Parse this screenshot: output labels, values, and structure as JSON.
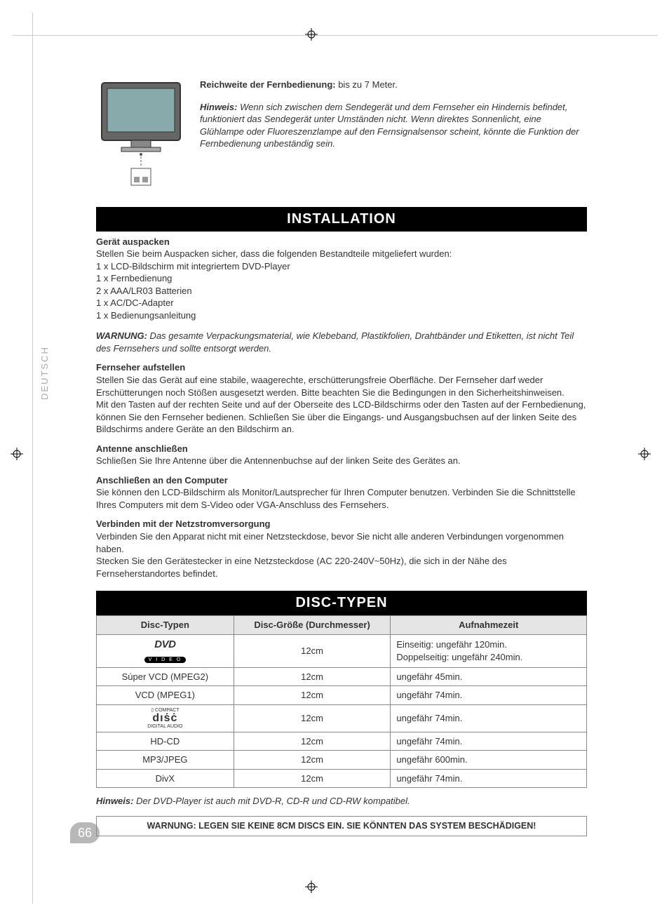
{
  "colors": {
    "text": "#333333",
    "bar_bg": "#000000",
    "bar_fg": "#ffffff",
    "table_border": "#888888",
    "table_header_bg": "#e5e5e5",
    "side_label": "#aaaaaa",
    "page_num_bg": "#b8b8b8",
    "crop": "#999999"
  },
  "typography": {
    "body_fontsize_pt": 10,
    "heading_bar_fontsize_pt": 15,
    "font_family": "Arial"
  },
  "side_label": "DEUTSCH",
  "page_number": "66",
  "intro": {
    "range_label": "Reichweite der Fernbedienung:",
    "range_value": " bis zu 7 Meter.",
    "note_label": "Hinweis:",
    "note_body": " Wenn sich zwischen dem Sendegerät und dem Fernseher ein Hindernis befindet, funktioniert das Sendegerät unter Umständen nicht. Wenn direktes Sonnenlicht, eine Glühlampe oder Fluoreszenzlampe auf den Fernsignalsensor scheint, könnte die Funktion der Fernbedienung unbeständig sein."
  },
  "installation": {
    "heading": "INSTALLATION",
    "unpack_head": "Gerät auspacken",
    "unpack_intro": "Stellen Sie beim Auspacken sicher, dass die folgenden Bestandteile mitgeliefert wurden:",
    "unpack_items": [
      "1 x LCD-Bildschirm mit integriertem DVD-Player",
      "1 x Fernbedienung",
      "2 x AAA/LR03 Batterien",
      "1 x AC/DC-Adapter",
      "1 x Bedienungsanleitung"
    ],
    "warn_label": "WARNUNG:",
    "warn_body": " Das gesamte Verpackungsmaterial, wie Klebeband, Plastikfolien, Drahtbänder und Etiketten, ist nicht Teil des Fernsehers und sollte entsorgt werden.",
    "setup_head": "Fernseher aufstellen",
    "setup_body1": "Stellen Sie das Gerät auf eine stabile, waagerechte, erschütterungsfreie Oberfläche. Der Fernseher darf weder Erschütterungen noch Stößen ausgesetzt werden. Bitte beachten Sie die Bedingungen in den Sicherheitshinweisen.",
    "setup_body2": "Mit den Tasten auf der rechten Seite und auf der Oberseite des LCD-Bildschirms oder den Tasten auf der Fernbedienung, können Sie den Fernseher bedienen. Schließen Sie über die Eingangs- und Ausgangsbuchsen auf der linken Seite des Bildschirms andere Geräte an den Bildschirm an.",
    "antenna_head": "Antenne anschließen",
    "antenna_body": "Schließen Sie Ihre Antenne über die Antennenbuchse auf der linken Seite des Gerätes an.",
    "computer_head": "Anschließen an den Computer",
    "computer_body": "Sie können den LCD-Bildschirm als Monitor/Lautsprecher für Ihren Computer benutzen. Verbinden Sie die Schnittstelle Ihres Computers mit dem S-Video oder VGA-Anschluss des Fernsehers.",
    "power_head": "Verbinden mit der Netzstromversorgung",
    "power_body1": "Verbinden Sie den Apparat nicht mit einer Netzsteckdose, bevor Sie nicht alle anderen Verbindungen vorgenommen haben.",
    "power_body2": "Stecken Sie den Gerätestecker in eine Netzsteckdose (AC 220-240V~50Hz), die sich in der Nähe des Fernseherstandortes befindet."
  },
  "disc": {
    "heading": "DISC-TYPEN",
    "columns": [
      "Disc-Typen",
      "Disc-Größe (Durchmesser)",
      "Aufnahmezeit"
    ],
    "rows": [
      {
        "type_logo": "dvd",
        "type_text": "",
        "size": "12cm",
        "time": "Einseitig: ungefähr 120min.\nDoppelseitig: ungefähr 240min."
      },
      {
        "type_logo": "",
        "type_text": "Súper VCD (MPEG2)",
        "size": "12cm",
        "time": "ungefähr 45min."
      },
      {
        "type_logo": "",
        "type_text": "VCD (MPEG1)",
        "size": "12cm",
        "time": "ungefähr 74min."
      },
      {
        "type_logo": "cd",
        "type_text": "",
        "size": "12cm",
        "time": "ungefähr 74min."
      },
      {
        "type_logo": "",
        "type_text": "HD-CD",
        "size": "12cm",
        "time": "ungefähr 74min."
      },
      {
        "type_logo": "",
        "type_text": "MP3/JPEG",
        "size": "12cm",
        "time": "ungefähr 600min."
      },
      {
        "type_logo": "",
        "type_text": "DivX",
        "size": "12cm",
        "time": "ungefähr 74min."
      }
    ],
    "footnote_label": "Hinweis:",
    "footnote_body": " Der DVD-Player ist auch mit DVD-R, CD-R und CD-RW kompatibel.",
    "warn_box": "WARNUNG: LEGEN SIE KEINE 8CM DISCS EIN. SIE KÖNNTEN DAS SYSTEM BESCHÄDIGEN!"
  }
}
